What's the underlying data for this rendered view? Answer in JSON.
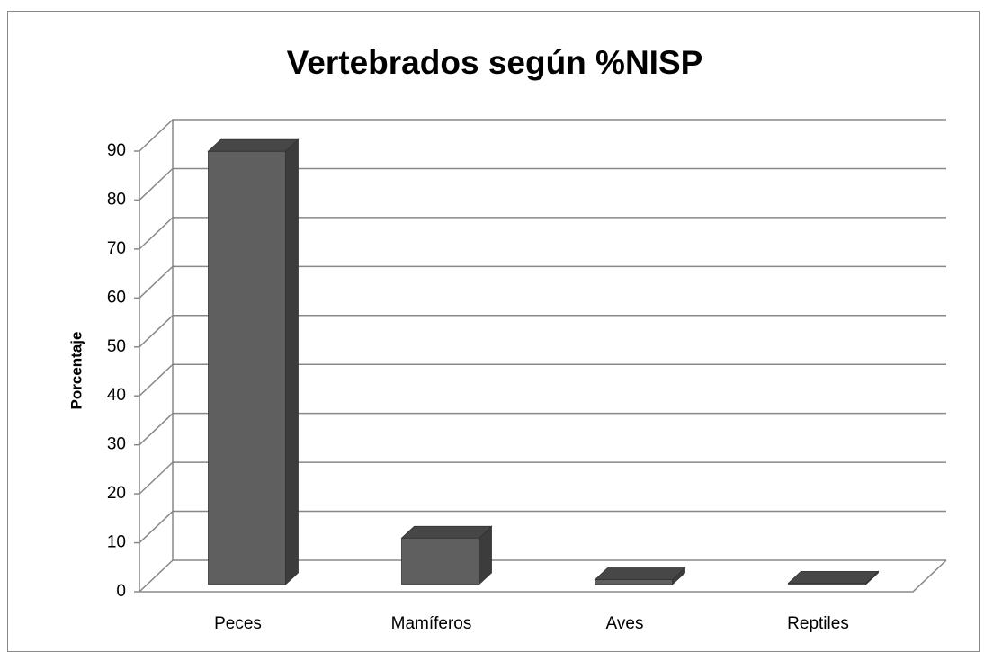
{
  "chart_data": {
    "type": "bar3d",
    "title": "Vertebrados según %NISP",
    "ylabel": "Porcentaje",
    "categories": [
      "Peces",
      "Mamíferos",
      "Aves",
      "Reptiles"
    ],
    "values": [
      88.5,
      9.5,
      1,
      0.3
    ],
    "color": "#5f5f5f",
    "ylim": [
      0,
      90
    ],
    "yticks": [
      0,
      10,
      20,
      30,
      40,
      50,
      60,
      70,
      80,
      90
    ],
    "grid": true
  }
}
